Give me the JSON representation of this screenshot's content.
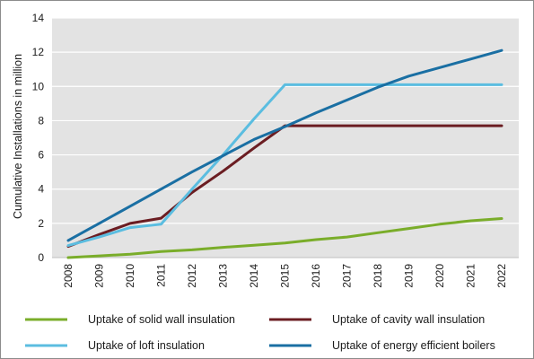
{
  "chart_data": {
    "type": "line",
    "title": "",
    "xlabel": "",
    "ylabel": "Cumulative Installations in million",
    "ylim": [
      0,
      14
    ],
    "yticks": [
      0,
      2,
      4,
      6,
      8,
      10,
      12,
      14
    ],
    "grid": true,
    "legend_position": "bottom",
    "categories": [
      "2008",
      "2009",
      "2010",
      "2011",
      "2012",
      "2013",
      "2014",
      "2015",
      "2016",
      "2017",
      "2018",
      "2019",
      "2020",
      "2021",
      "2022"
    ],
    "series": [
      {
        "name": "Uptake of solid wall insulation",
        "color": "#7aad2a",
        "values": [
          0.0,
          0.1,
          0.2,
          0.35,
          0.45,
          0.6,
          0.72,
          0.85,
          1.05,
          1.2,
          1.45,
          1.7,
          1.95,
          2.15,
          2.28
        ]
      },
      {
        "name": "Uptake of cavity wall insulation",
        "color": "#6b1d22",
        "values": [
          0.65,
          1.35,
          2.0,
          2.3,
          3.8,
          5.05,
          6.4,
          7.7,
          7.7,
          7.7,
          7.7,
          7.7,
          7.7,
          7.7,
          7.7
        ]
      },
      {
        "name": "Uptake of loft insulation",
        "color": "#5bbde0",
        "values": [
          0.7,
          1.2,
          1.75,
          1.95,
          4.0,
          6.0,
          8.1,
          10.1,
          10.1,
          10.1,
          10.1,
          10.1,
          10.1,
          10.1,
          10.1
        ]
      },
      {
        "name": "Uptake of energy efficient boilers",
        "color": "#1a6fa3",
        "values": [
          1.0,
          2.0,
          3.0,
          4.0,
          5.0,
          5.95,
          6.9,
          7.65,
          8.45,
          9.2,
          9.95,
          10.6,
          11.1,
          11.6,
          12.1
        ]
      }
    ]
  }
}
